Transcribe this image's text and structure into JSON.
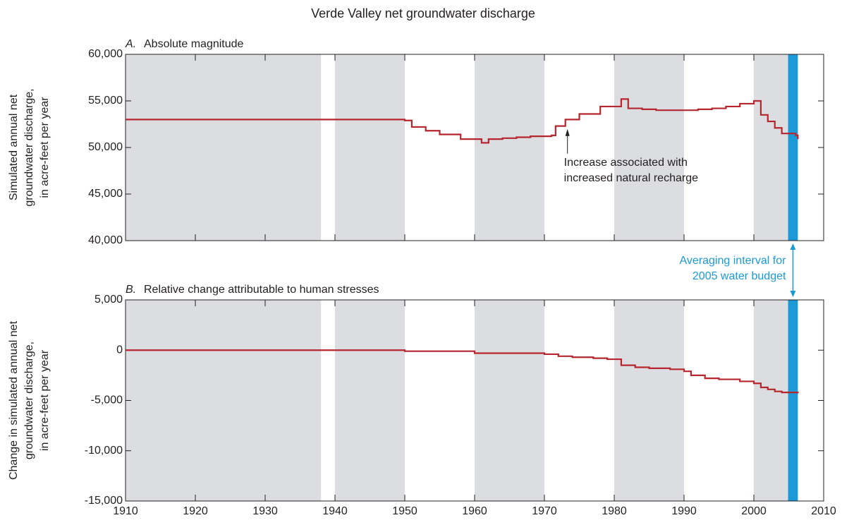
{
  "title": "Verde Valley net groundwater discharge",
  "shading": {
    "periods": [
      [
        1910,
        1938
      ],
      [
        1940,
        1950
      ],
      [
        1960,
        1970
      ],
      [
        1980,
        1990
      ],
      [
        2000,
        2004.9
      ]
    ],
    "color": "#dcdde0",
    "highlight": [
      2004.9,
      2006.3
    ],
    "highlight_color": "#1b9ad6"
  },
  "annotation_interval": [
    "Averaging interval for",
    "2005 water budget"
  ],
  "chart_data": [
    {
      "type": "line",
      "step": true,
      "panel": "A.",
      "title": "Absolute magnitude",
      "ylabel": [
        "Simulated annual net",
        "groundwater discharge,",
        "in acre-feet per year"
      ],
      "color": "#b5262e",
      "x": [
        1910,
        1950,
        1951,
        1953,
        1955,
        1958,
        1961,
        1962,
        1964,
        1966,
        1968,
        1971,
        1971.6,
        1973,
        1975,
        1978,
        1981,
        1982,
        1984,
        1986,
        1990,
        1992,
        1994,
        1996,
        1998,
        2000,
        2001,
        2002,
        2003,
        2004,
        2006,
        2006.3
      ],
      "values": [
        53000,
        52900,
        52200,
        51800,
        51400,
        50900,
        50500,
        50900,
        51000,
        51100,
        51200,
        51300,
        52300,
        53000,
        53600,
        54400,
        55200,
        54200,
        54100,
        54000,
        54000,
        54100,
        54200,
        54400,
        54700,
        55000,
        53500,
        52800,
        52100,
        51500,
        51300,
        50900
      ],
      "xlim": [
        1910,
        2010
      ],
      "xticks": [
        1910,
        1920,
        1930,
        1940,
        1950,
        1960,
        1970,
        1980,
        1990,
        2000,
        2010
      ],
      "ylim": [
        40000,
        60000
      ],
      "yticks": [
        {
          "value": 40000,
          "label": "40,000"
        },
        {
          "value": 45000,
          "label": "45,000"
        },
        {
          "value": 50000,
          "label": "50,000"
        },
        {
          "value": 55000,
          "label": "55,000"
        },
        {
          "value": 60000,
          "label": "60,000"
        }
      ],
      "annotation": {
        "text": [
          "Increase associated with",
          "increased natural recharge"
        ],
        "x": 1973.3,
        "y": 52900
      }
    },
    {
      "type": "line",
      "step": true,
      "panel": "B.",
      "title": "Relative change attributable to human stresses",
      "ylabel": [
        "Change in simulated annual net",
        "groundwater discharge,",
        "in acre-feet per year"
      ],
      "color": "#b5262e",
      "x": [
        1910,
        1940,
        1950,
        1960,
        1970,
        1972,
        1974,
        1977,
        1979,
        1981,
        1983,
        1985,
        1988,
        1990,
        1991,
        1993,
        1995,
        1998,
        2000,
        2001,
        2002,
        2003,
        2004,
        2006.3
      ],
      "values": [
        0,
        0,
        -100,
        -300,
        -400,
        -600,
        -700,
        -800,
        -900,
        -1500,
        -1700,
        -1800,
        -1900,
        -2100,
        -2500,
        -2800,
        -2900,
        -3100,
        -3300,
        -3700,
        -3900,
        -4100,
        -4200,
        -4300
      ],
      "xlim": [
        1910,
        2010
      ],
      "xticks": [
        1910,
        1920,
        1930,
        1940,
        1950,
        1960,
        1970,
        1980,
        1990,
        2000,
        2010
      ],
      "ylim": [
        -15000,
        5000
      ],
      "yticks": [
        {
          "value": -15000,
          "label": "-15,000"
        },
        {
          "value": -10000,
          "label": "-10,000"
        },
        {
          "value": -5000,
          "label": "-5,000"
        },
        0,
        {
          "value": 5000,
          "label": "5,000"
        }
      ]
    }
  ]
}
